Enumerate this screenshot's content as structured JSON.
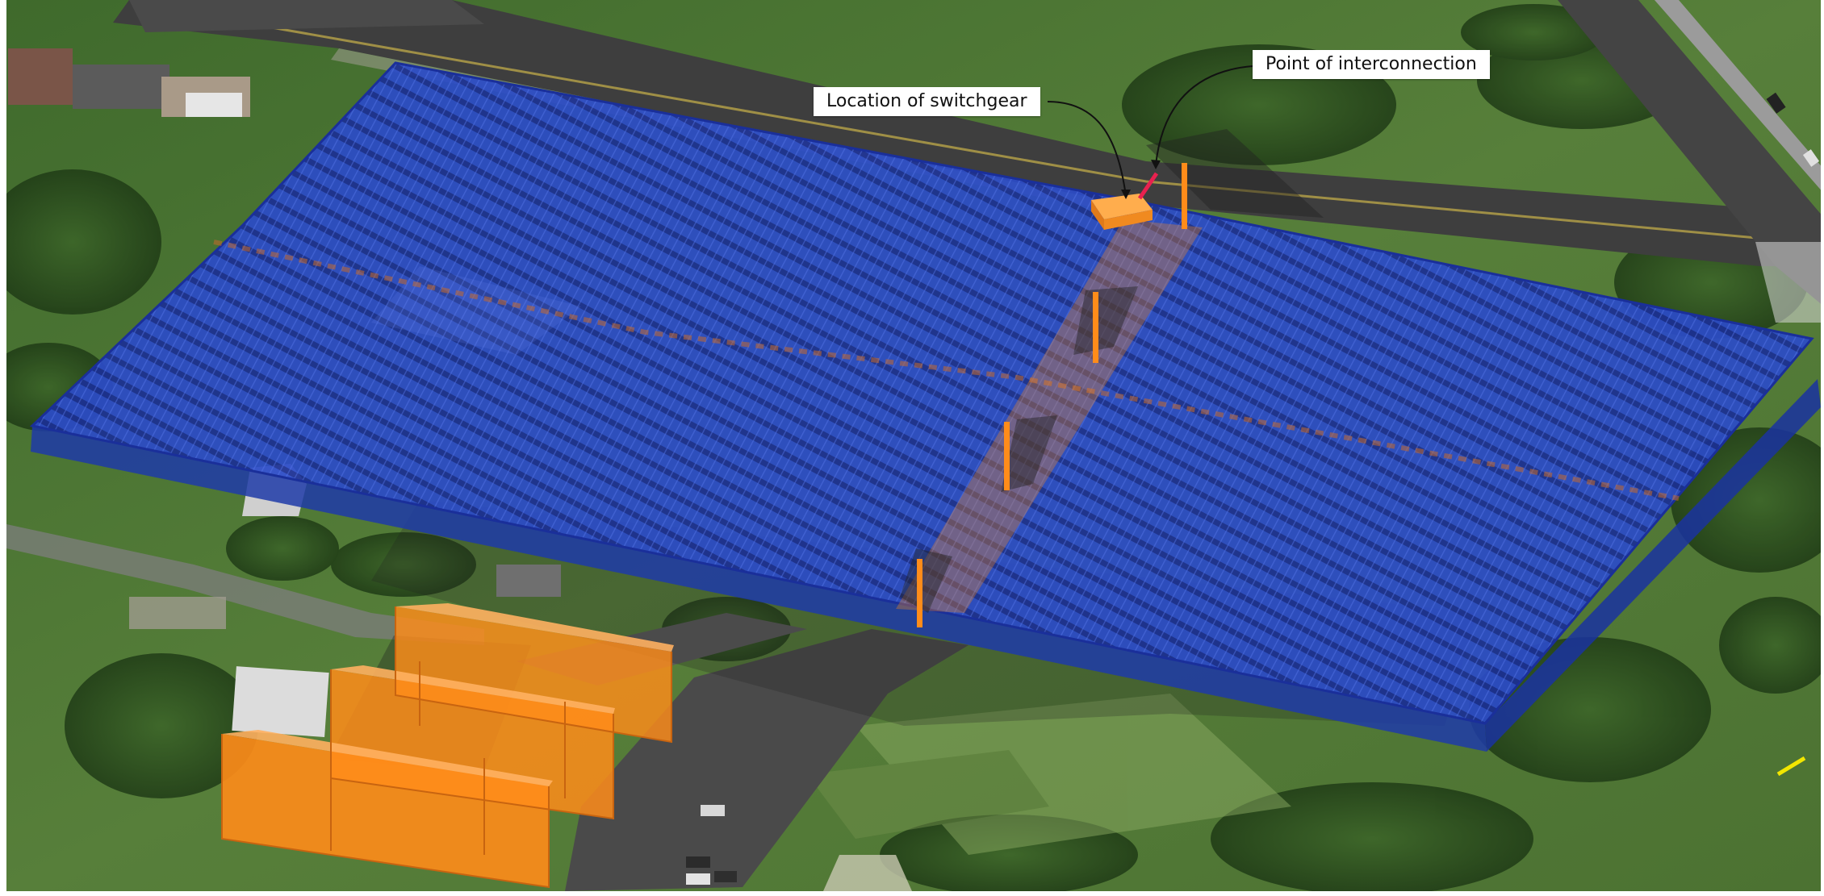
{
  "callouts": {
    "switchgear": "Location of switchgear",
    "interconnection": "Point of interconnection"
  },
  "colors": {
    "panel_fill": "#2a49c4",
    "panel_edge": "#1a2f9a",
    "equipment_orange": "#ff8c1a",
    "interconnection_line": "#e8214f",
    "grass": "#4f7a36",
    "road": "#3e3e3e"
  }
}
